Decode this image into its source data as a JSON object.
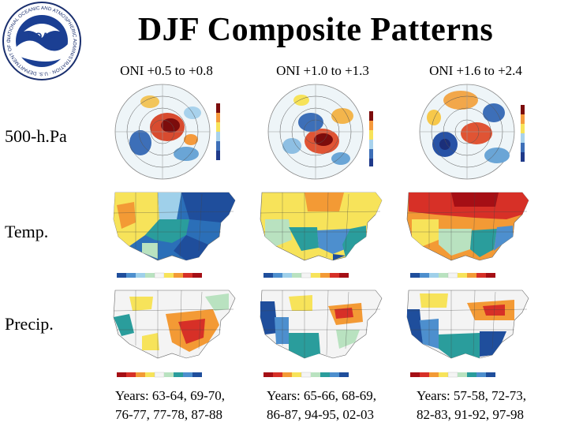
{
  "logo": {
    "icon": "noaa-logo-icon",
    "ring_text": "NATIONAL OCEANIC AND ATMOSPHERIC ADMINISTRATION · U.S. DEPARTMENT OF COMMERCE",
    "center_text": "NOAA"
  },
  "title": "DJF Composite Patterns",
  "columns": [
    {
      "header": "ONI +0.5 to +0.8",
      "years_line1": "Years: 63-64, 69-70,",
      "years_line2": "76-77, 77-78, 87-88"
    },
    {
      "header": "ONI +1.0 to +1.3",
      "years_line1": "Years: 65-66, 68-69,",
      "years_line2": "86-87, 94-95, 02-03"
    },
    {
      "header": "ONI +1.6 to +2.4",
      "years_line1": "Years: 57-58, 72-73,",
      "years_line2": "82-83, 91-92, 97-98"
    }
  ],
  "rows": [
    {
      "label": "500-h.Pa"
    },
    {
      "label": "Temp."
    },
    {
      "label": "Precip."
    }
  ],
  "colors": {
    "strong_blue": "#1f4e9c",
    "blue": "#4d8fce",
    "light_blue": "#9fd0ea",
    "teal": "#2a9d9c",
    "light_green": "#b9e2c0",
    "yellow": "#f7e35a",
    "orange": "#f39a35",
    "red": "#d73027",
    "dark_red": "#a50f15",
    "neutral": "#f4f4f4"
  }
}
